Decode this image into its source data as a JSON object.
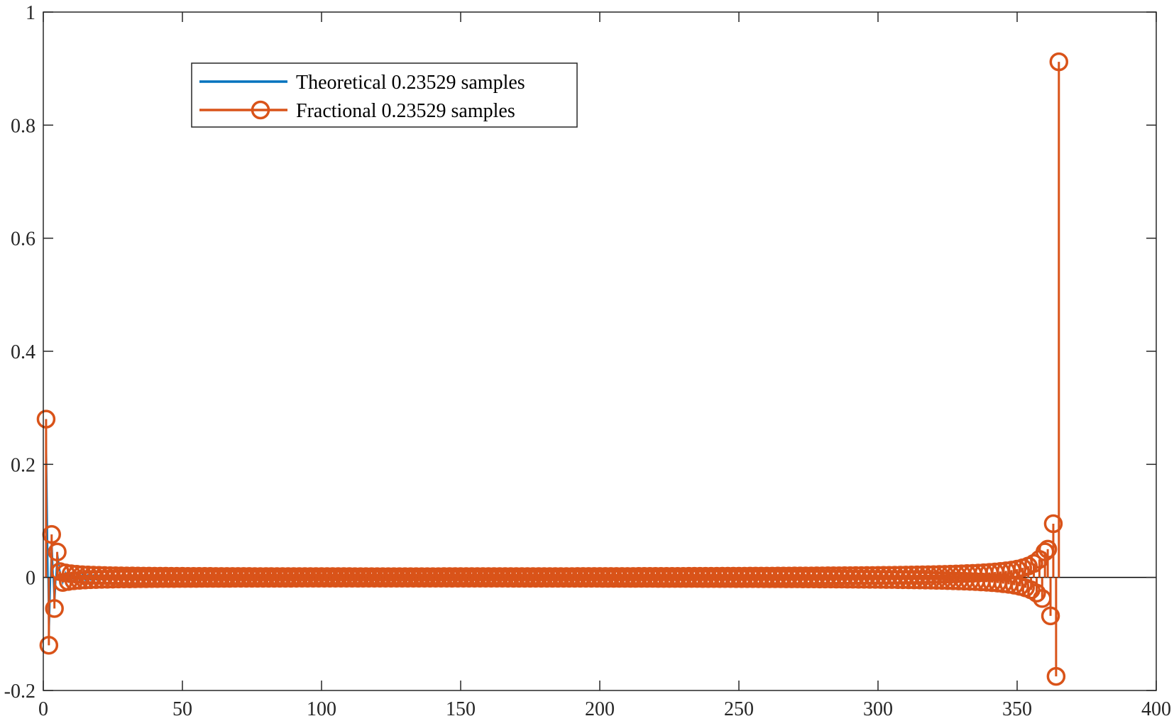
{
  "chart_data": {
    "type": "stem",
    "xlim": [
      0,
      400
    ],
    "ylim": [
      -0.2,
      1
    ],
    "xticks": [
      0,
      50,
      100,
      150,
      200,
      250,
      300,
      350,
      400
    ],
    "yticks": [
      -0.2,
      0,
      0.2,
      0.4,
      0.6,
      0.8,
      1
    ],
    "x_tick_labels": [
      "0",
      "50",
      "100",
      "150",
      "200",
      "250",
      "300",
      "350",
      "400"
    ],
    "y_tick_labels": [
      "-0.2",
      "0",
      "0.2",
      "0.4",
      "0.6",
      "0.8",
      "1"
    ],
    "grid": false,
    "legend_position": "top-left",
    "fractional_delay": 0.23529,
    "n_samples": 365,
    "peak_index": 365,
    "series": [
      {
        "name": "Theoretical 0.23529 samples",
        "style": "line",
        "color": "#0072BD",
        "shown_values": [
          {
            "x": 1,
            "y": 0.28
          },
          {
            "x": 2,
            "y": -0.12
          },
          {
            "x": 3,
            "y": 0.076
          },
          {
            "x": 4,
            "y": -0.055
          }
        ]
      },
      {
        "name": "Fractional 0.23529 samples",
        "style": "stem",
        "color": "#D95319",
        "shown_values": [
          {
            "x": 1,
            "y": 0.28
          },
          {
            "x": 2,
            "y": -0.12
          },
          {
            "x": 3,
            "y": 0.076
          },
          {
            "x": 4,
            "y": -0.055
          },
          {
            "x": 5,
            "y": 0.045
          },
          {
            "x": 361,
            "y": 0.05
          },
          {
            "x": 362,
            "y": -0.068
          },
          {
            "x": 363,
            "y": 0.095
          },
          {
            "x": 364,
            "y": -0.175
          },
          {
            "x": 365,
            "y": 0.912
          }
        ]
      }
    ]
  },
  "colors": {
    "axes": "#262626",
    "theoretical": "#0072BD",
    "fractional": "#D95319"
  }
}
